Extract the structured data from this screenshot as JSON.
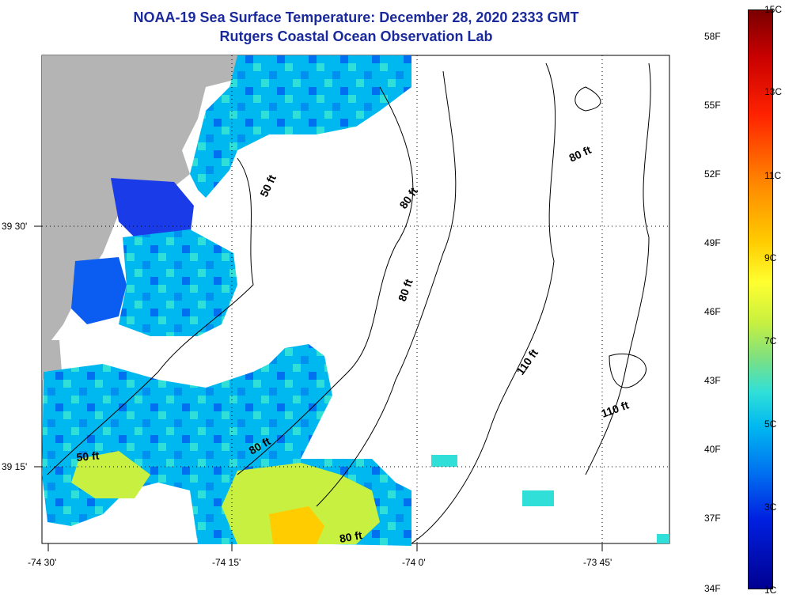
{
  "title": {
    "line1": "NOAA-19 Sea Surface Temperature:  December 28, 2020 2333 GMT",
    "line2": "Rutgers Coastal Ocean Observation Lab"
  },
  "axes": {
    "x_ticks": [
      "-74 30'",
      "-74 15'",
      "-74 0'",
      "-73 45'"
    ],
    "y_ticks": [
      "39 30'",
      "39 15'"
    ]
  },
  "contours": {
    "labels": [
      "50 ft",
      "80 ft",
      "80 ft",
      "80 ft",
      "80 ft",
      "110 ft",
      "110 ft",
      "50 ft",
      "80 ft"
    ]
  },
  "colorbar": {
    "fahrenheit": [
      "58F",
      "55F",
      "52F",
      "49F",
      "46F",
      "43F",
      "40F",
      "37F",
      "34F"
    ],
    "celsius": [
      "15C",
      "13C",
      "11C",
      "9C",
      "7C",
      "5C",
      "3C",
      "1C"
    ]
  },
  "colors": {
    "title": "#1a2a9c",
    "land": "#b4b4b4",
    "cold": "#0020e0",
    "mid": "#00b8f0",
    "warm": "#ffcc00"
  }
}
